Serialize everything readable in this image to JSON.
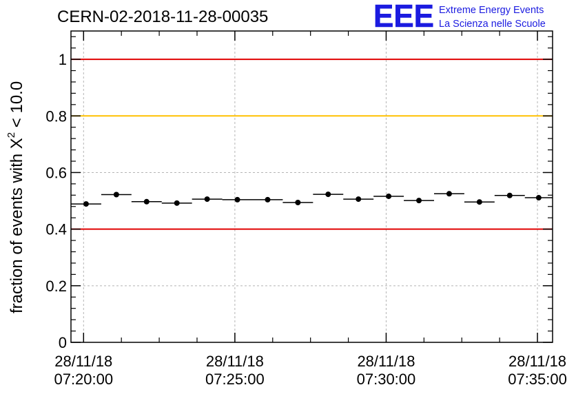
{
  "chart_data": {
    "type": "scatter",
    "title": "CERN-02-2018-11-28-00035",
    "ylabel_prefix": "fraction of events with ",
    "ylabel_symbol": "X",
    "ylabel_sup": "2",
    "ylabel_suffix": " < 10.0",
    "xlabel": "",
    "ylim": [
      0,
      1.1
    ],
    "xlim": [
      "07:19:35",
      "07:35:30"
    ],
    "grid": true,
    "x_tick_labels": [
      {
        "time": "07:20:00",
        "date": "28/11/18",
        "clock": "07:20:00"
      },
      {
        "time": "07:25:00",
        "date": "28/11/18",
        "clock": "07:25:00"
      },
      {
        "time": "07:30:00",
        "date": "28/11/18",
        "clock": "07:30:00"
      },
      {
        "time": "07:35:00",
        "date": "28/11/18",
        "clock": "07:35:00"
      }
    ],
    "y_ticks": [
      0,
      0.2,
      0.4,
      0.6,
      0.8,
      1
    ],
    "y_tick_labels": [
      "0",
      "0.2",
      "0.4",
      "0.6",
      "0.8",
      "1"
    ],
    "reference_lines": [
      {
        "y": 1.0,
        "color": "#e00000"
      },
      {
        "y": 0.8,
        "color": "#ffc000"
      },
      {
        "y": 0.4,
        "color": "#e00000"
      }
    ],
    "series": [
      {
        "x_start": [
          "07:19:35",
          "07:20:35",
          "07:21:35",
          "07:22:35",
          "07:23:35",
          "07:24:35",
          "07:25:35",
          "07:26:35",
          "07:27:35",
          "07:28:35",
          "07:29:35",
          "07:30:35",
          "07:31:35",
          "07:32:35",
          "07:33:35",
          "07:34:35"
        ],
        "x_end": [
          "07:20:35",
          "07:21:35",
          "07:22:35",
          "07:23:35",
          "07:24:35",
          "07:25:35",
          "07:26:35",
          "07:27:35",
          "07:28:35",
          "07:29:35",
          "07:30:35",
          "07:31:35",
          "07:32:35",
          "07:33:35",
          "07:34:35",
          "07:35:30"
        ],
        "values": [
          0.489,
          0.522,
          0.497,
          0.492,
          0.506,
          0.504,
          0.504,
          0.494,
          0.523,
          0.506,
          0.516,
          0.501,
          0.525,
          0.496,
          0.519,
          0.511
        ],
        "color": "#000000"
      }
    ]
  },
  "logo": {
    "mark": "EEE",
    "line1": "Extreme Energy Events",
    "line2": "La Scienza nelle Scuole",
    "color": "#1b1be0"
  }
}
